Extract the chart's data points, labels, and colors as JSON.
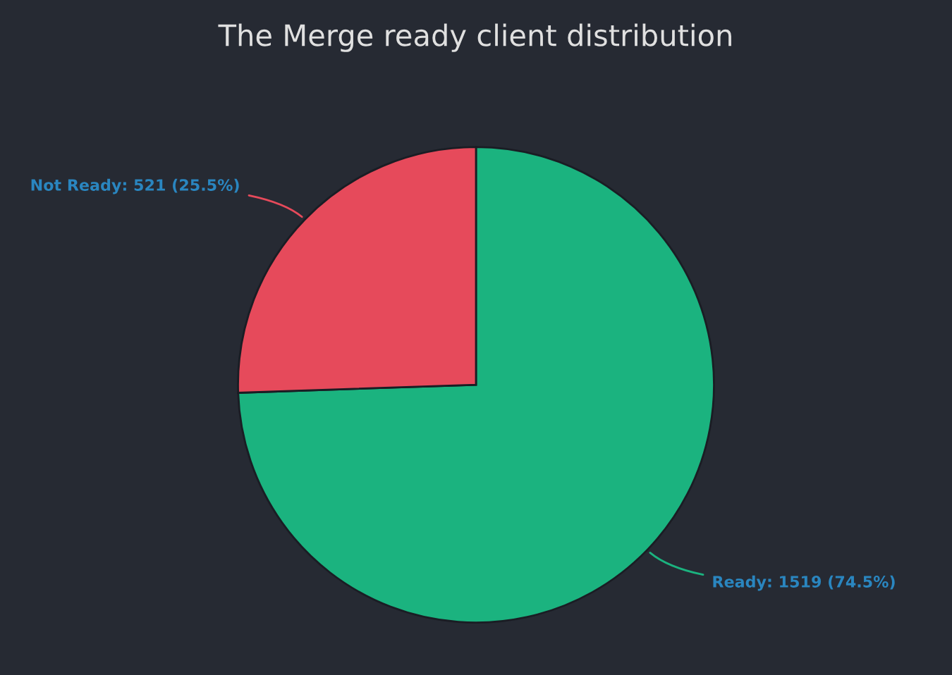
{
  "chart_data": {
    "type": "pie",
    "title": "The Merge ready client distribution",
    "categories": [
      "Ready",
      "Not Ready"
    ],
    "values": [
      1519,
      521
    ],
    "colors": [
      "#1bb37f",
      "#e64a5b"
    ],
    "value_labels": [
      "1519 (74.5%)",
      "521 (25.5%)"
    ],
    "legend": false
  }
}
